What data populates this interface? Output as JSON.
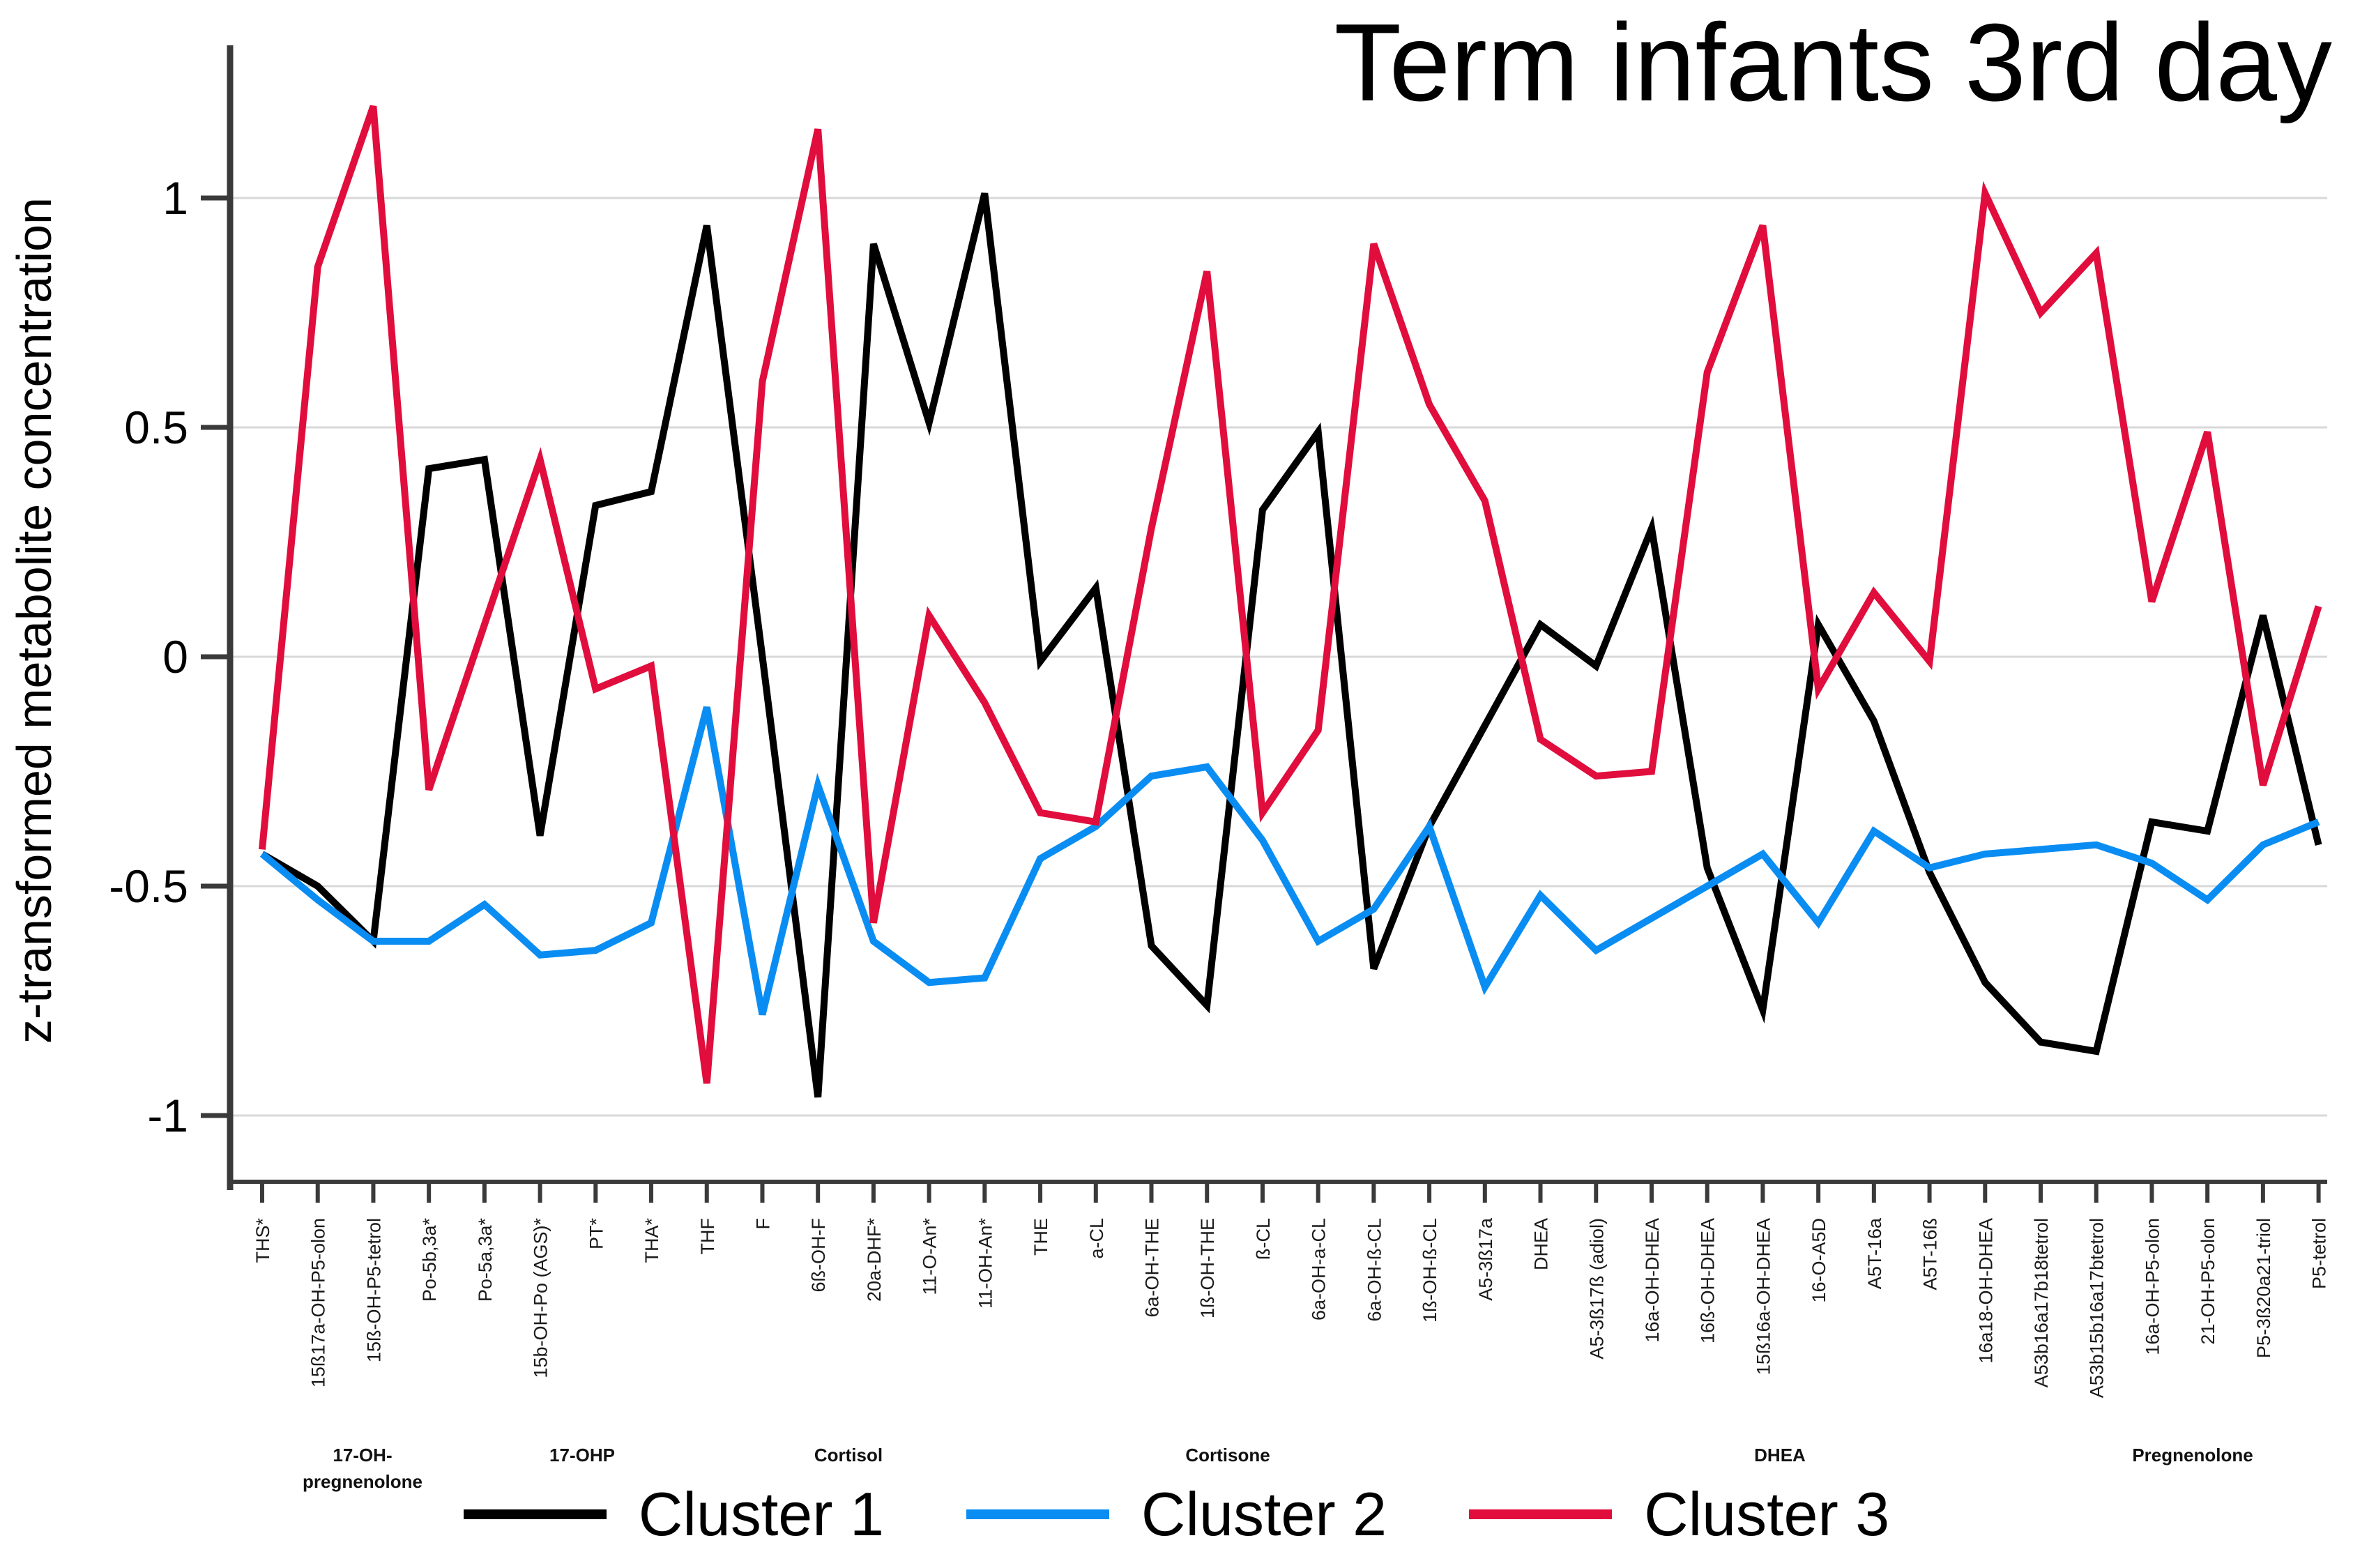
{
  "title": "Term infants 3rd day",
  "y_axis": {
    "label": "z-transformed metabolite concentration",
    "tick_values": [
      1,
      0.5,
      0,
      -0.5,
      -1
    ],
    "tick_labels": [
      "1",
      "0.5",
      "0",
      "-0.5",
      "-1"
    ]
  },
  "legend": [
    {
      "label": "Cluster 1",
      "color": "#000000"
    },
    {
      "label": "Cluster 2",
      "color": "#0a8df2"
    },
    {
      "label": "Cluster 3",
      "color": "#e00d3d"
    }
  ],
  "group_labels": [
    {
      "text": "17-OH-",
      "line2": "pregnenolone",
      "x": 520
    },
    {
      "text": "17-OHP",
      "x": 835
    },
    {
      "text": "Cortisol",
      "x": 1217
    },
    {
      "text": "Cortisone",
      "x": 1761
    },
    {
      "text": "DHEA",
      "x": 2553
    },
    {
      "text": "Pregnenolone",
      "x": 3145
    }
  ],
  "chart_data": {
    "type": "line",
    "title": "Term infants 3rd day",
    "xlabel": "",
    "ylabel": "z-transformed metabolite concentration",
    "ylim": [
      -1.15,
      1.3
    ],
    "grid": "horizontal",
    "legend_position": "bottom",
    "categories": [
      "THS*",
      "15ß17a-OH-P5-olon",
      "15ß-OH-P5-tetrol",
      "Po-5b,3a*",
      "Po-5a,3a*",
      "15b-OH-Po (AGS)*",
      "PT*",
      "THA*",
      "THF",
      "F",
      "6ß-OH-F",
      "20a-DHF*",
      "11-O-An*",
      "11-OH-An*",
      "THE",
      "a-CL",
      "6a-OH-THE",
      "1ß-OH-THE",
      "ß-CL",
      "6a-OH-a-CL",
      "6a-OH-ß-CL",
      "1ß-OH-ß-CL",
      "A5-3ß17a",
      "DHEA",
      "A5-3ß17ß (adiol)",
      "16a-OH-DHEA",
      "16ß-OH-DHEA",
      "15ß16a-OH-DHEA",
      "16-O-A5D",
      "A5T-16a",
      "A5T-16ß",
      "16a18-OH-DHEA",
      "A53b16a17b18tetrol",
      "A53b15b16a17btetrol",
      "16a-OH-P5-olon",
      "21-OH-P5-olon",
      "P5-3ß20a21-triol",
      "P5-tetrol"
    ],
    "series": [
      {
        "name": "Cluster 1",
        "color": "#000000",
        "values": [
          -0.43,
          -0.5,
          -0.62,
          0.41,
          0.43,
          -0.39,
          0.33,
          0.36,
          0.94,
          0.0,
          -0.96,
          0.9,
          0.51,
          1.01,
          -0.01,
          0.15,
          -0.63,
          -0.76,
          0.32,
          0.49,
          -0.68,
          -0.37,
          -0.15,
          0.07,
          -0.02,
          0.28,
          -0.46,
          -0.77,
          0.07,
          -0.14,
          -0.47,
          -0.71,
          -0.84,
          -0.86,
          -0.36,
          -0.38,
          0.09,
          -0.41
        ]
      },
      {
        "name": "Cluster 2",
        "color": "#0a8df2",
        "values": [
          -0.43,
          -0.53,
          -0.62,
          -0.62,
          -0.54,
          -0.65,
          -0.64,
          -0.58,
          -0.11,
          -0.78,
          -0.28,
          -0.62,
          -0.71,
          -0.7,
          -0.44,
          -0.37,
          -0.26,
          -0.24,
          -0.4,
          -0.62,
          -0.55,
          -0.37,
          -0.72,
          -0.52,
          -0.64,
          -0.57,
          -0.5,
          -0.43,
          -0.58,
          -0.38,
          -0.46,
          -0.43,
          -0.42,
          -0.41,
          -0.45,
          -0.53,
          -0.41,
          -0.36
        ]
      },
      {
        "name": "Cluster 3",
        "color": "#e00d3d",
        "values": [
          -0.42,
          0.85,
          1.2,
          -0.29,
          0.07,
          0.43,
          -0.07,
          -0.02,
          -0.93,
          0.6,
          1.15,
          -0.58,
          0.09,
          -0.1,
          -0.34,
          -0.36,
          0.28,
          0.84,
          -0.34,
          -0.16,
          0.9,
          0.55,
          0.34,
          -0.18,
          -0.26,
          -0.25,
          0.62,
          0.94,
          -0.07,
          0.14,
          -0.01,
          1.01,
          0.75,
          0.88,
          0.12,
          0.49,
          -0.28,
          0.11
        ]
      }
    ]
  }
}
